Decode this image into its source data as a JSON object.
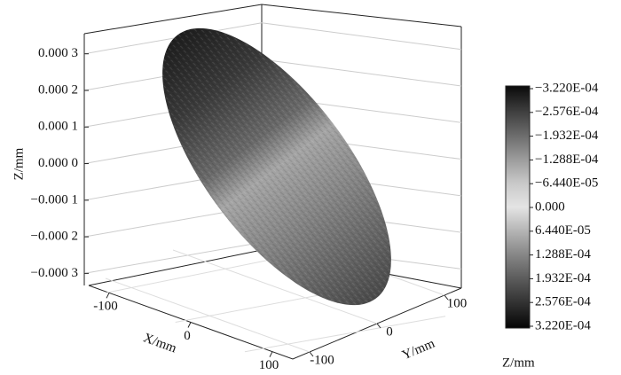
{
  "chart_data": {
    "type": "surface3d",
    "xlabel": "X/mm",
    "ylabel": "Y/mm",
    "zlabel": "Z/mm",
    "xlim": [
      -125,
      125
    ],
    "xticks": [
      -100,
      0,
      100
    ],
    "ylim": [
      -125,
      125
    ],
    "yticks": [
      -100,
      0,
      100
    ],
    "zlim": [
      -0.000333,
      0.000355
    ],
    "zticks": [
      {
        "value": 0.0003,
        "label": "0.000 3"
      },
      {
        "value": 0.0002,
        "label": "0.000 2"
      },
      {
        "value": 0.0001,
        "label": "0.000 1"
      },
      {
        "value": 0,
        "label": "0.000 0"
      },
      {
        "value": -0.0001,
        "label": "−0.000 1"
      },
      {
        "value": -0.0002,
        "label": "−0.000 2"
      },
      {
        "value": -0.0003,
        "label": "−0.000 3"
      }
    ],
    "grid": true,
    "colorbar": {
      "label": "Z/mm",
      "clim": [
        -0.000322,
        0.000322
      ],
      "colors": [
        "#0a0a0a",
        "#3c3c3c",
        "#6a6a6a",
        "#9a9a9a",
        "#c8c8c8",
        "#e4e4e4",
        "#b4b4b4",
        "#858585",
        "#5a5a5a",
        "#303030",
        "#050505"
      ],
      "ticks": [
        {
          "value": -0.000322,
          "label": "−3.220E-04"
        },
        {
          "value": -0.0002576,
          "label": "−2.576E-04"
        },
        {
          "value": -0.0001932,
          "label": "−1.932E-04"
        },
        {
          "value": -0.0001288,
          "label": "−1.288E-04"
        },
        {
          "value": -6.44e-05,
          "label": "−6.440E-05"
        },
        {
          "value": 0,
          "label": "0.000"
        },
        {
          "value": 6.44e-05,
          "label": "6.440E-05"
        },
        {
          "value": 0.0001288,
          "label": "1.288E-04"
        },
        {
          "value": 0.0001932,
          "label": "1.932E-04"
        },
        {
          "value": 0.0002576,
          "label": "2.576E-04"
        },
        {
          "value": 0.000322,
          "label": "3.220E-04"
        }
      ]
    }
  }
}
